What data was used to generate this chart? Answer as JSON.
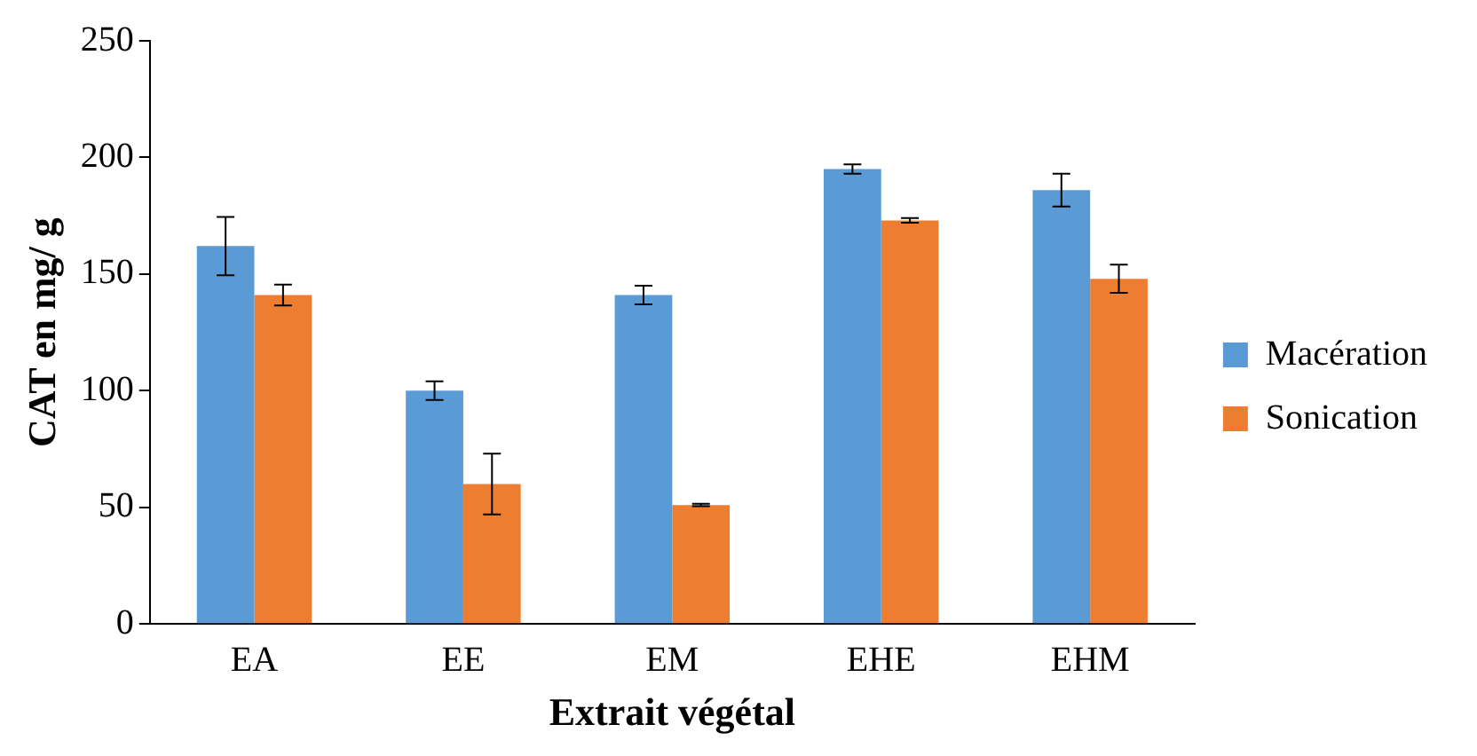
{
  "chart_data": {
    "type": "bar",
    "xlabel": "Extrait végétal",
    "ylabel": "CAT en mg/ g",
    "categories": [
      "EA",
      "EE",
      "EM",
      "EHE",
      "EHM"
    ],
    "series": [
      {
        "name": "Macération",
        "color": "#5b9bd5",
        "values": [
          162,
          100,
          141,
          195,
          186
        ],
        "errors": [
          12.5,
          4,
          4,
          2,
          7
        ]
      },
      {
        "name": "Sonication",
        "color": "#ed7d31",
        "values": [
          141,
          60,
          51,
          173,
          148
        ],
        "errors": [
          4.5,
          13,
          0.5,
          1,
          6
        ]
      }
    ],
    "ylim": [
      0,
      250
    ],
    "yticks": [
      0,
      50,
      100,
      150,
      200,
      250
    ],
    "grid": false,
    "legend": "right"
  }
}
